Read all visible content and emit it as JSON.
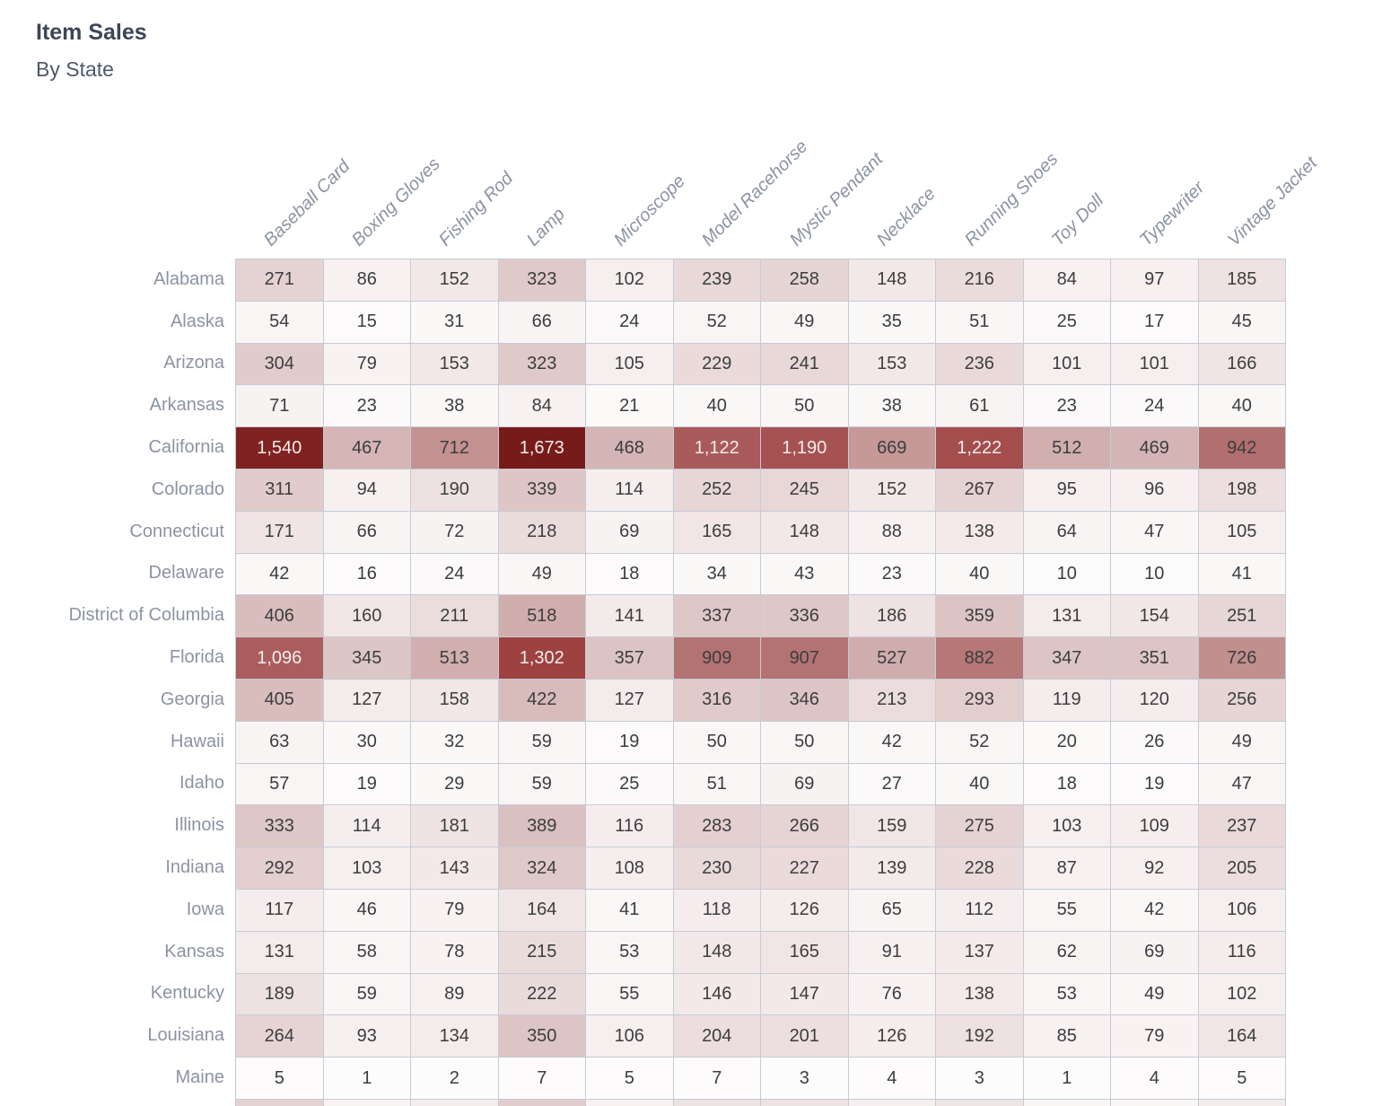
{
  "header": {
    "title": "Item Sales",
    "subtitle": "By State"
  },
  "colors": {
    "title_text": "#3d4656",
    "subtitle_text": "#4e586c",
    "label_text": "#8b93a2",
    "gridline": "#c5cbd5",
    "cell_text_dark": "#3d3d3d",
    "cell_text_light": "#f3ecec",
    "scale_min": "#fdfcfc",
    "scale_max": "#771a1a"
  },
  "chart_data": {
    "type": "heatmap",
    "title": "Item Sales",
    "subtitle": "By State",
    "legend_position": "none",
    "grid": true,
    "max_value": 1673,
    "columns": [
      "Baseball Card",
      "Boxing Gloves",
      "Fishing Rod",
      "Lamp",
      "Microscope",
      "Model Racehorse",
      "Mystic Pendant",
      "Necklace",
      "Running Shoes",
      "Toy Doll",
      "Typewriter",
      "Vintage Jacket"
    ],
    "rows": [
      {
        "state": "Alabama",
        "values": [
          271,
          86,
          152,
          323,
          102,
          239,
          258,
          148,
          216,
          84,
          97,
          185
        ]
      },
      {
        "state": "Alaska",
        "values": [
          54,
          15,
          31,
          66,
          24,
          52,
          49,
          35,
          51,
          25,
          17,
          45
        ]
      },
      {
        "state": "Arizona",
        "values": [
          304,
          79,
          153,
          323,
          105,
          229,
          241,
          153,
          236,
          101,
          101,
          166
        ]
      },
      {
        "state": "Arkansas",
        "values": [
          71,
          23,
          38,
          84,
          21,
          40,
          50,
          38,
          61,
          23,
          24,
          40
        ]
      },
      {
        "state": "California",
        "values": [
          1540,
          467,
          712,
          1673,
          468,
          1122,
          1190,
          669,
          1222,
          512,
          469,
          942
        ]
      },
      {
        "state": "Colorado",
        "values": [
          311,
          94,
          190,
          339,
          114,
          252,
          245,
          152,
          267,
          95,
          96,
          198
        ]
      },
      {
        "state": "Connecticut",
        "values": [
          171,
          66,
          72,
          218,
          69,
          165,
          148,
          88,
          138,
          64,
          47,
          105
        ]
      },
      {
        "state": "Delaware",
        "values": [
          42,
          16,
          24,
          49,
          18,
          34,
          43,
          23,
          40,
          10,
          10,
          41
        ]
      },
      {
        "state": "District of Columbia",
        "values": [
          406,
          160,
          211,
          518,
          141,
          337,
          336,
          186,
          359,
          131,
          154,
          251
        ]
      },
      {
        "state": "Florida",
        "values": [
          1096,
          345,
          513,
          1302,
          357,
          909,
          907,
          527,
          882,
          347,
          351,
          726
        ]
      },
      {
        "state": "Georgia",
        "values": [
          405,
          127,
          158,
          422,
          127,
          316,
          346,
          213,
          293,
          119,
          120,
          256
        ]
      },
      {
        "state": "Hawaii",
        "values": [
          63,
          30,
          32,
          59,
          19,
          50,
          50,
          42,
          52,
          20,
          26,
          49
        ]
      },
      {
        "state": "Idaho",
        "values": [
          57,
          19,
          29,
          59,
          25,
          51,
          69,
          27,
          40,
          18,
          19,
          47
        ]
      },
      {
        "state": "Illinois",
        "values": [
          333,
          114,
          181,
          389,
          116,
          283,
          266,
          159,
          275,
          103,
          109,
          237
        ]
      },
      {
        "state": "Indiana",
        "values": [
          292,
          103,
          143,
          324,
          108,
          230,
          227,
          139,
          228,
          87,
          92,
          205
        ]
      },
      {
        "state": "Iowa",
        "values": [
          117,
          46,
          79,
          164,
          41,
          118,
          126,
          65,
          112,
          55,
          42,
          106
        ]
      },
      {
        "state": "Kansas",
        "values": [
          131,
          58,
          78,
          215,
          53,
          148,
          165,
          91,
          137,
          62,
          69,
          116
        ]
      },
      {
        "state": "Kentucky",
        "values": [
          189,
          59,
          89,
          222,
          55,
          146,
          147,
          76,
          138,
          53,
          49,
          102
        ]
      },
      {
        "state": "Louisiana",
        "values": [
          264,
          93,
          134,
          350,
          106,
          204,
          201,
          126,
          192,
          85,
          79,
          164
        ]
      },
      {
        "state": "Maine",
        "values": [
          5,
          1,
          2,
          7,
          5,
          7,
          3,
          4,
          3,
          1,
          4,
          5
        ]
      }
    ],
    "partial_next_row_tints": [
      0.16,
      0.04,
      0.07,
      0.18,
      0.05,
      0.11,
      0.11,
      0.06,
      0.1,
      0.03,
      0.03,
      0.08
    ]
  }
}
